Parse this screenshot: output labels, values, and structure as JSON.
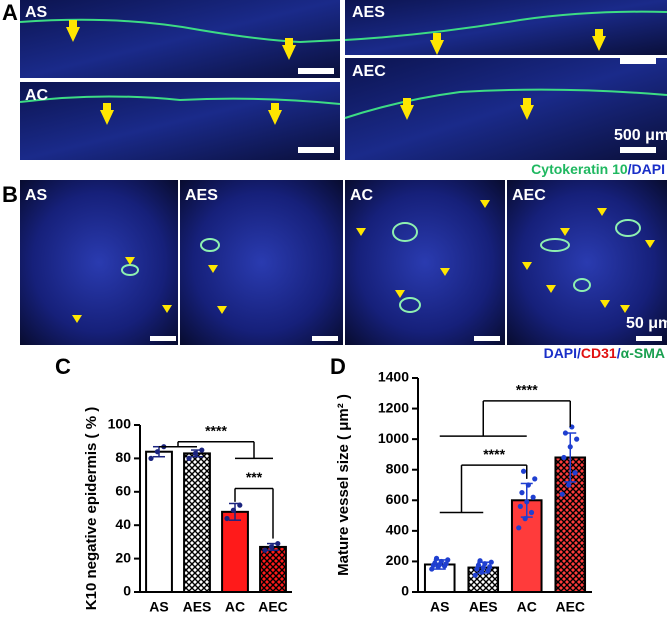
{
  "figure": {
    "panel_labels": [
      "A",
      "B",
      "C",
      "D"
    ],
    "a_labels": [
      "AS",
      "AES",
      "AC",
      "AEC"
    ],
    "a_scale": "500 μm",
    "a_legend": [
      {
        "text": "Cytokeratin 10",
        "color": "#1fb860"
      },
      {
        "text": "/DAPI",
        "color": "#1a2fc8"
      }
    ],
    "b_labels": [
      "AS",
      "AES",
      "AC",
      "AEC"
    ],
    "b_scale": "50 μm",
    "b_legend": [
      {
        "text": "DAPI",
        "color": "#1a2fc8"
      },
      {
        "text": "/",
        "color": "#1a2fc8"
      },
      {
        "text": "CD31",
        "color": "#e01010"
      },
      {
        "text": "/",
        "color": "#1a2fc8"
      },
      {
        "text": "α-SMA",
        "color": "#1aa050"
      }
    ]
  },
  "chart_data": [
    {
      "type": "bar",
      "ylabel": "K10 negative epidermis ( % )",
      "categories": [
        "AS",
        "AES",
        "AC",
        "AEC"
      ],
      "values": [
        84,
        83,
        48,
        27
      ],
      "errors": [
        3,
        2,
        5,
        2
      ],
      "points": [
        [
          80,
          84,
          87
        ],
        [
          80,
          83,
          85
        ],
        [
          44,
          49,
          52
        ],
        [
          25,
          27,
          29
        ]
      ],
      "colors": [
        "#ffffff",
        "#ffffff",
        "#ff1a1a",
        "#ff1a1a"
      ],
      "hatch": [
        false,
        true,
        false,
        true
      ],
      "point_color": "#1a237e",
      "ylim": [
        0,
        100
      ],
      "yticks": [
        0,
        20,
        40,
        60,
        80,
        100
      ],
      "annotations": [
        {
          "text": "****",
          "y": 90,
          "left": [
            0,
            1
          ],
          "left_y": 87,
          "right": [
            2,
            3
          ],
          "right_y": 80
        },
        {
          "text": "***",
          "y": 62,
          "left": [
            2
          ],
          "left_y": 54,
          "right": [
            3
          ],
          "right_y": 32
        }
      ]
    },
    {
      "type": "bar",
      "ylabel": "Mature vessel size ( μm² )",
      "categories": [
        "AS",
        "AES",
        "AC",
        "AEC"
      ],
      "values": [
        180,
        160,
        600,
        880
      ],
      "errors": [
        30,
        35,
        110,
        160
      ],
      "points": [
        [
          150,
          165,
          170,
          175,
          180,
          185,
          190,
          200,
          210,
          220
        ],
        [
          110,
          130,
          140,
          150,
          160,
          165,
          175,
          185,
          195,
          205
        ],
        [
          420,
          480,
          520,
          560,
          590,
          620,
          650,
          700,
          740,
          790
        ],
        [
          640,
          700,
          780,
          880,
          950,
          1000,
          1040,
          1080
        ]
      ],
      "colors": [
        "#ffffff",
        "#ffffff",
        "#ff3b3b",
        "#ff3b3b"
      ],
      "hatch": [
        false,
        true,
        false,
        true
      ],
      "point_color": "#1f3fd0",
      "ylim": [
        0,
        1400
      ],
      "yticks": [
        0,
        200,
        400,
        600,
        800,
        1000,
        1200,
        1400
      ],
      "annotations": [
        {
          "text": "****",
          "y": 1250,
          "left": [
            0,
            1,
            2
          ],
          "left_y": 1020,
          "right": [
            3
          ],
          "right_y": 1080
        },
        {
          "text": "****",
          "y": 830,
          "left": [
            0,
            1
          ],
          "left_y": 520,
          "right": [
            2
          ],
          "right_y": 740
        }
      ]
    }
  ]
}
